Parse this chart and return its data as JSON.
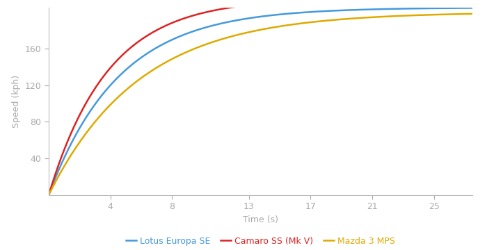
{
  "xlabel": "Time (s)",
  "ylabel": "Speed (kph)",
  "xlim": [
    0,
    27.5
  ],
  "ylim": [
    0,
    205
  ],
  "xticks": [
    4,
    8,
    13,
    17,
    21,
    25
  ],
  "yticks": [
    40,
    80,
    120,
    160
  ],
  "background_color": "#ffffff",
  "spine_color": "#bbbbbb",
  "tick_color": "#aaaaaa",
  "label_color": "#aaaaaa",
  "series": [
    {
      "label": "Lotus Europa SE",
      "color": "#4499dd",
      "A": 205,
      "b": 0.22
    },
    {
      "label": "Camaro SS (Mk V)",
      "color": "#dd2222",
      "A": 215,
      "b": 0.26
    },
    {
      "label": "Mazda 3 MPS",
      "color": "#ddaa00",
      "A": 200,
      "b": 0.17
    }
  ],
  "legend_fontsize": 9,
  "linewidth": 1.8
}
